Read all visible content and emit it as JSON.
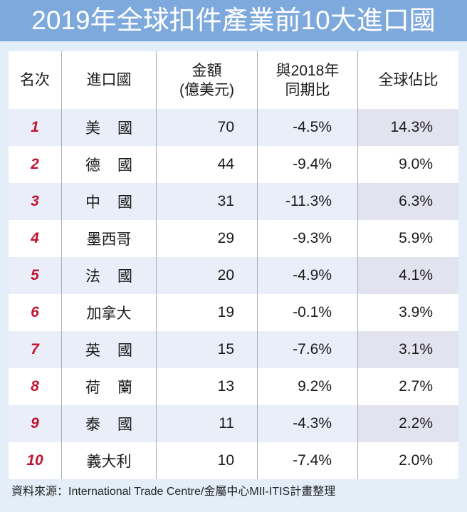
{
  "title": "2019年全球扣件產業前10大進口國",
  "header": {
    "rank": "名次",
    "country": "進口國",
    "amount_line1": "金額",
    "amount_line2": "(億美元)",
    "yoy_line1": "與2018年",
    "yoy_line2": "同期比",
    "share": "全球佔比"
  },
  "rows": [
    {
      "rank": "1",
      "country": "美國",
      "amount": "70",
      "yoy": "-4.5%",
      "share": "14.3%"
    },
    {
      "rank": "2",
      "country": "德國",
      "amount": "44",
      "yoy": "-9.4%",
      "share": "9.0%"
    },
    {
      "rank": "3",
      "country": "中國",
      "amount": "31",
      "yoy": "-11.3%",
      "share": "6.3%"
    },
    {
      "rank": "4",
      "country": "墨西哥",
      "amount": "29",
      "yoy": "-9.3%",
      "share": "5.9%"
    },
    {
      "rank": "5",
      "country": "法國",
      "amount": "20",
      "yoy": "-4.9%",
      "share": "4.1%"
    },
    {
      "rank": "6",
      "country": "加拿大",
      "amount": "19",
      "yoy": "-0.1%",
      "share": "3.9%"
    },
    {
      "rank": "7",
      "country": "英國",
      "amount": "15",
      "yoy": "-7.6%",
      "share": "3.1%"
    },
    {
      "rank": "8",
      "country": "荷蘭",
      "amount": "13",
      "yoy": "9.2%",
      "share": "2.7%"
    },
    {
      "rank": "9",
      "country": "泰國",
      "amount": "11",
      "yoy": "-4.3%",
      "share": "2.2%"
    },
    {
      "rank": "10",
      "country": "義大利",
      "amount": "10",
      "yoy": "-7.4%",
      "share": "2.0%"
    }
  ],
  "footer": "資料來源：International Trade Centre/金屬中心MII-ITIS計畫整理",
  "colors": {
    "title_bar": "#7ea9dc",
    "background": "#e3eef9",
    "rank_text": "#c0142f",
    "row_alt": "#e9eef8"
  },
  "chart_data": {
    "type": "table",
    "title": "2019年全球扣件產業前10大進口國",
    "columns": [
      "名次",
      "進口國",
      "金額(億美元)",
      "與2018年同期比",
      "全球佔比"
    ],
    "categories": [
      "美國",
      "德國",
      "中國",
      "墨西哥",
      "法國",
      "加拿大",
      "英國",
      "荷蘭",
      "泰國",
      "義大利"
    ],
    "series": [
      {
        "name": "金額(億美元)",
        "values": [
          70,
          44,
          31,
          29,
          20,
          19,
          15,
          13,
          11,
          10
        ]
      },
      {
        "name": "與2018年同期比(%)",
        "values": [
          -4.5,
          -9.4,
          -11.3,
          -9.3,
          -4.9,
          -0.1,
          -7.6,
          9.2,
          -4.3,
          -7.4
        ]
      },
      {
        "name": "全球佔比(%)",
        "values": [
          14.3,
          9.0,
          6.3,
          5.9,
          4.1,
          3.9,
          3.1,
          2.7,
          2.2,
          2.0
        ]
      }
    ],
    "source": "International Trade Centre/金屬中心MII-ITIS計畫整理"
  }
}
